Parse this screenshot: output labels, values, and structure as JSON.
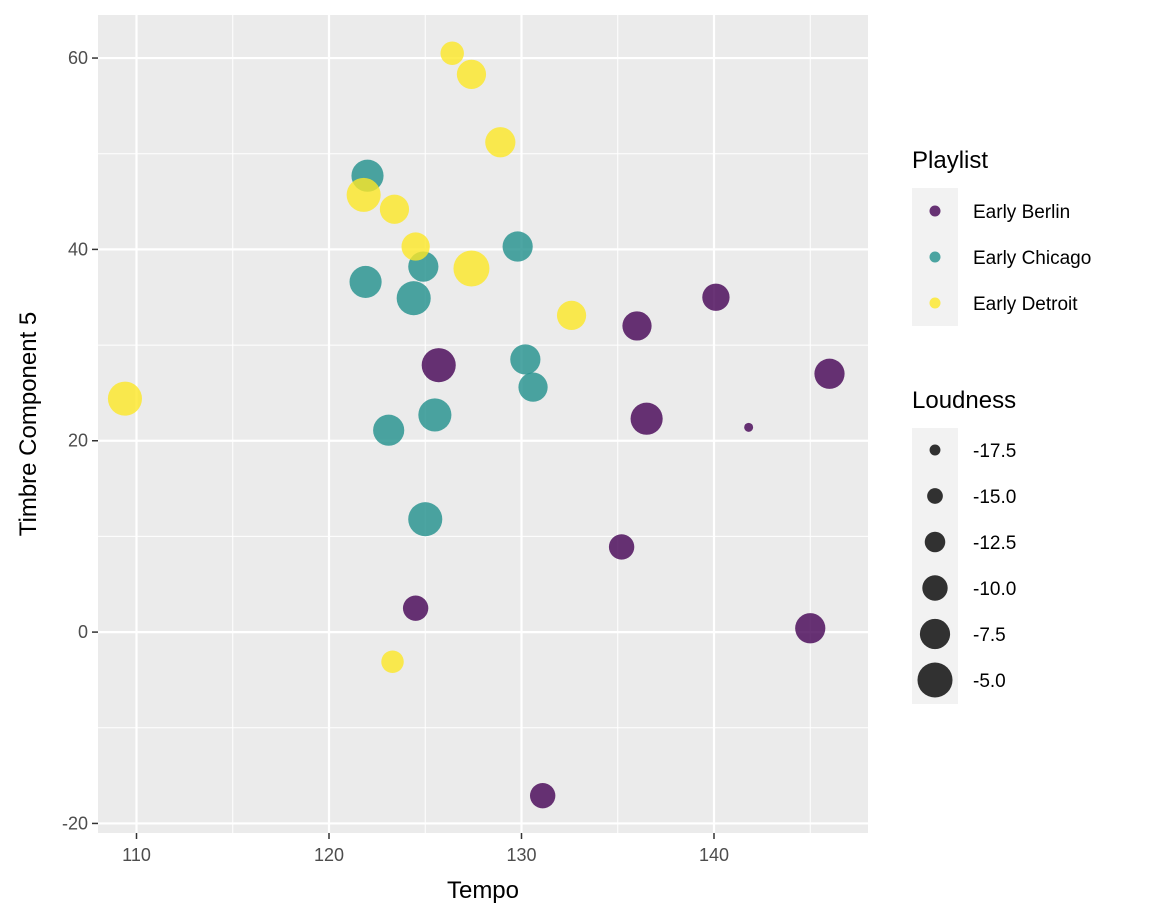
{
  "chart_data": {
    "type": "scatter",
    "xlabel": "Tempo",
    "ylabel": "Timbre Component 5",
    "xlim": [
      108,
      148
    ],
    "ylim": [
      -21,
      64.5
    ],
    "x_ticks": [
      110,
      120,
      130,
      140
    ],
    "y_ticks": [
      -20,
      0,
      20,
      40,
      60
    ],
    "x_tick_labels": [
      "110",
      "120",
      "130",
      "140"
    ],
    "y_tick_labels": [
      "-20",
      "0",
      "20",
      "40",
      "60"
    ],
    "grid": true,
    "legend_position": "right",
    "color_legend": {
      "title": "Playlist",
      "entries": [
        {
          "label": "Early Berlin",
          "color": "#440154"
        },
        {
          "label": "Early Chicago",
          "color": "#21908C"
        },
        {
          "label": "Early Detroit",
          "color": "#FDE725"
        }
      ]
    },
    "size_legend": {
      "title": "Loudness",
      "entries": [
        "-17.5",
        "-15.0",
        "-12.5",
        "-10.0",
        "-7.5",
        "-5.0"
      ],
      "values": [
        -17.5,
        -15.0,
        -12.5,
        -10.0,
        -7.5,
        -5.0
      ]
    },
    "series": [
      {
        "name": "Early Berlin",
        "color": "#440154",
        "points": [
          {
            "x": 125.7,
            "y": 27.9,
            "loudness": -5.5
          },
          {
            "x": 136.0,
            "y": 32.0,
            "loudness": -8.0
          },
          {
            "x": 136.5,
            "y": 22.3,
            "loudness": -6.5
          },
          {
            "x": 140.1,
            "y": 35.0,
            "loudness": -9.0
          },
          {
            "x": 146.0,
            "y": 27.0,
            "loudness": -7.5
          },
          {
            "x": 141.8,
            "y": 21.4,
            "loudness": -18.5
          },
          {
            "x": 135.2,
            "y": 8.9,
            "loudness": -10.0
          },
          {
            "x": 124.5,
            "y": 2.5,
            "loudness": -10.0
          },
          {
            "x": 145.0,
            "y": 0.4,
            "loudness": -7.5
          },
          {
            "x": 131.1,
            "y": -17.1,
            "loudness": -10.0
          }
        ]
      },
      {
        "name": "Early Chicago",
        "color": "#21908C",
        "points": [
          {
            "x": 122.0,
            "y": 47.7,
            "loudness": -6.5
          },
          {
            "x": 121.9,
            "y": 36.6,
            "loudness": -6.5
          },
          {
            "x": 124.4,
            "y": 34.9,
            "loudness": -5.5
          },
          {
            "x": 124.9,
            "y": 38.2,
            "loudness": -7.5
          },
          {
            "x": 129.8,
            "y": 40.3,
            "loudness": -7.5
          },
          {
            "x": 130.2,
            "y": 28.5,
            "loudness": -7.5
          },
          {
            "x": 130.6,
            "y": 25.6,
            "loudness": -8.0
          },
          {
            "x": 125.5,
            "y": 22.7,
            "loudness": -6.0
          },
          {
            "x": 123.1,
            "y": 21.1,
            "loudness": -7.0
          },
          {
            "x": 125.0,
            "y": 11.8,
            "loudness": -5.5
          }
        ]
      },
      {
        "name": "Early Detroit",
        "color": "#FDE725",
        "points": [
          {
            "x": 126.4,
            "y": 60.5,
            "loudness": -11.0
          },
          {
            "x": 127.4,
            "y": 58.3,
            "loudness": -8.0
          },
          {
            "x": 128.9,
            "y": 51.2,
            "loudness": -7.5
          },
          {
            "x": 121.8,
            "y": 45.7,
            "loudness": -5.5
          },
          {
            "x": 123.4,
            "y": 44.2,
            "loudness": -8.0
          },
          {
            "x": 124.5,
            "y": 40.3,
            "loudness": -8.5
          },
          {
            "x": 127.4,
            "y": 38.0,
            "loudness": -4.5
          },
          {
            "x": 132.6,
            "y": 33.1,
            "loudness": -8.0
          },
          {
            "x": 109.4,
            "y": 24.4,
            "loudness": -5.5
          },
          {
            "x": 123.3,
            "y": -3.1,
            "loudness": -11.5
          }
        ]
      }
    ]
  }
}
